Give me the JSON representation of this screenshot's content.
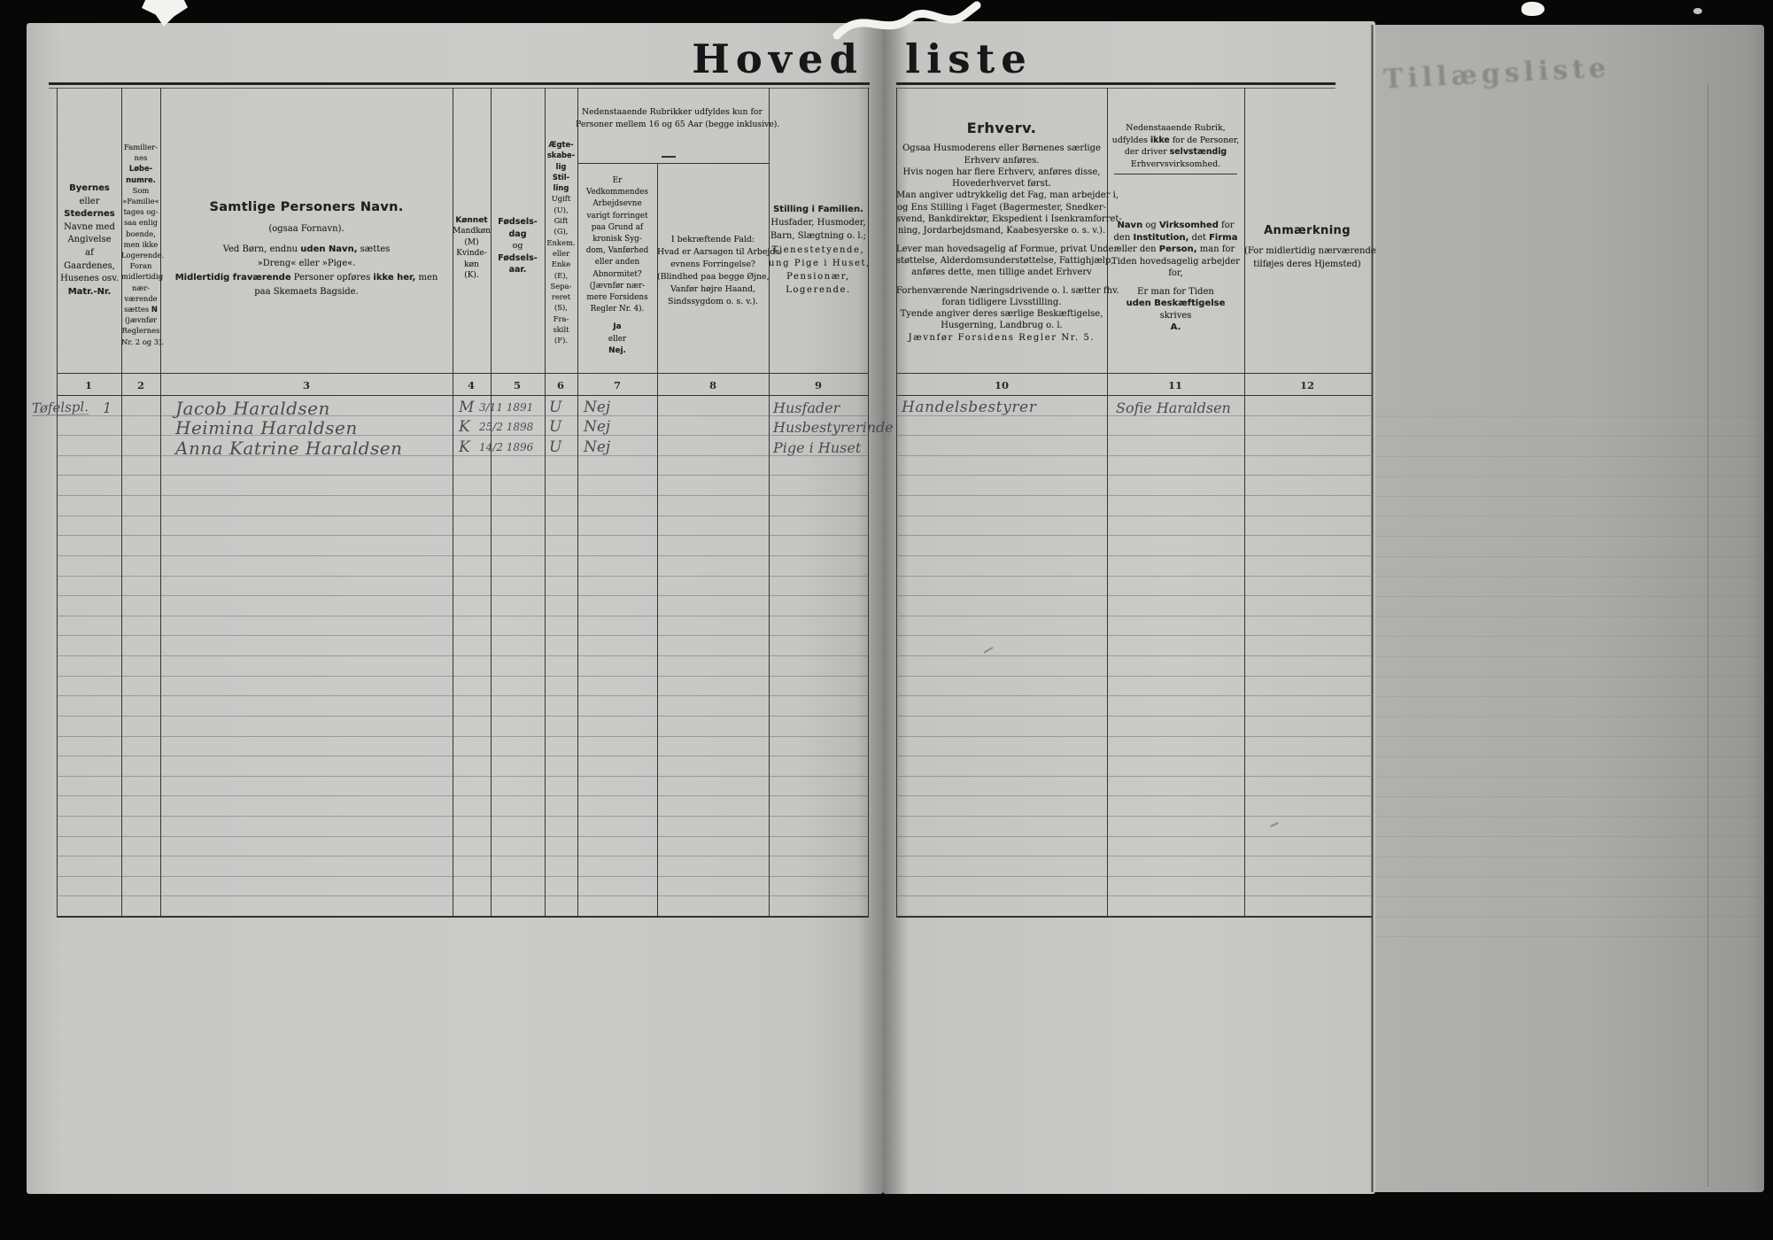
{
  "title": {
    "word1": "Hoved",
    "word2": "liste"
  },
  "bleed": {
    "text": "Tillægsliste"
  },
  "left_table": {
    "numbers": [
      "1",
      "2",
      "3",
      "4",
      "5",
      "6",
      "7",
      "8",
      "9"
    ],
    "col1": {
      "lines": [
        [
          {
            "t": "Byernes",
            "b": 1
          }
        ],
        [
          {
            "t": "eller"
          }
        ],
        [
          {
            "t": "Stedernes",
            "b": 1
          }
        ],
        [
          {
            "t": "Navne med"
          }
        ],
        [
          {
            "t": "Angivelse"
          }
        ],
        [
          {
            "t": "af"
          }
        ],
        [
          {
            "t": "Gaardenes,"
          }
        ],
        [
          {
            "t": "Husenes osv."
          }
        ],
        [
          {
            "t": "Matr.-Nr.",
            "b": 1
          }
        ]
      ]
    },
    "col2": {
      "lines": [
        [
          {
            "t": "Familier-"
          }
        ],
        [
          {
            "t": "nes"
          }
        ],
        [
          {
            "t": "Løbe-",
            "b": 1
          }
        ],
        [
          {
            "t": "numre.",
            "b": 1
          }
        ],
        [
          {
            "t": "Som"
          }
        ],
        [
          {
            "t": "»Familie«"
          }
        ],
        [
          {
            "t": "tages og-"
          }
        ],
        [
          {
            "t": "saa enlig"
          }
        ],
        [
          {
            "t": "boende,"
          }
        ],
        [
          {
            "t": "men ikke"
          }
        ],
        [
          {
            "t": "Logerende."
          }
        ],
        [
          {
            "t": "Foran"
          }
        ],
        [
          {
            "t": "midlertidig"
          }
        ],
        [
          {
            "t": "nær-"
          }
        ],
        [
          {
            "t": "værende"
          }
        ],
        [
          {
            "t": "sættes "
          },
          {
            "t": "N",
            "b": 1
          }
        ],
        [
          {
            "t": "(jævnfør"
          }
        ],
        [
          {
            "t": "Reglernes"
          }
        ],
        [
          {
            "t": "Nr. 2 og 3)."
          }
        ]
      ]
    },
    "col3": {
      "lines": [
        [
          {
            "t": "Samtlige Personers Navn.",
            "b": 1,
            "c": "big"
          }
        ],
        [
          {
            "t": "(ogsaa Fornavn).",
            "lc": "gap"
          }
        ],
        [
          {
            "t": "Ved Børn, endnu ",
            "lc": "gap"
          },
          {
            "t": "uden Navn,",
            "b": 1
          },
          {
            "t": " sættes"
          }
        ],
        [
          {
            "t": "»Dreng« eller »Pige«."
          }
        ],
        [
          {
            "t": "Midlertidig fraværende",
            "b": 1
          },
          {
            "t": " Personer opføres "
          },
          {
            "t": "ikke her,",
            "b": 1
          },
          {
            "t": " men"
          }
        ],
        [
          {
            "t": "paa Skemaets Bagside."
          }
        ]
      ]
    },
    "col4": {
      "lines": [
        [
          {
            "t": "Kønnet",
            "b": 1
          }
        ],
        [
          {
            "t": "Mandkøn"
          }
        ],
        [
          {
            "t": "(M)"
          }
        ],
        [
          {
            "t": "Kvinde-"
          }
        ],
        [
          {
            "t": "køn"
          }
        ],
        [
          {
            "t": "(K)."
          }
        ]
      ]
    },
    "col5": {
      "lines": [
        [
          {
            "t": "Fødsels-",
            "b": 1
          }
        ],
        [
          {
            "t": "dag",
            "b": 1
          }
        ],
        [
          {
            "t": "og"
          }
        ],
        [
          {
            "t": "Fødsels-",
            "b": 1
          }
        ],
        [
          {
            "t": "aar.",
            "b": 1
          }
        ]
      ]
    },
    "col6": {
      "lines": [
        [
          {
            "t": "Ægte-",
            "b": 1
          }
        ],
        [
          {
            "t": "skabe-",
            "b": 1
          }
        ],
        [
          {
            "t": "lig",
            "b": 1
          }
        ],
        [
          {
            "t": "Stil-",
            "b": 1
          }
        ],
        [
          {
            "t": "ling",
            "b": 1
          }
        ],
        [
          {
            "t": "Ugift"
          }
        ],
        [
          {
            "t": "(U),"
          }
        ],
        [
          {
            "t": "Gift"
          }
        ],
        [
          {
            "t": "(G),"
          }
        ],
        [
          {
            "t": "Enkem."
          }
        ],
        [
          {
            "t": "eller"
          }
        ],
        [
          {
            "t": "Enke"
          }
        ],
        [
          {
            "t": "(E),"
          }
        ],
        [
          {
            "t": "Sepa-"
          }
        ],
        [
          {
            "t": "reret"
          }
        ],
        [
          {
            "t": "(S),"
          }
        ],
        [
          {
            "t": "Fra-"
          }
        ],
        [
          {
            "t": "skilt"
          }
        ],
        [
          {
            "t": "(F)."
          }
        ]
      ]
    },
    "span_note": {
      "lines": [
        [
          {
            "t": "Nedenstaaende Rubrikker udfyldes kun for"
          }
        ],
        [
          {
            "t": "Personer mellem 16 og 65 Aar (begge inklusive)."
          }
        ]
      ]
    },
    "col7": {
      "lines": [
        [
          {
            "t": "Er"
          }
        ],
        [
          {
            "t": "Vedkommendes"
          }
        ],
        [
          {
            "t": "Arbejdsevne"
          }
        ],
        [
          {
            "t": "varigt forringet"
          }
        ],
        [
          {
            "t": "paa Grund af"
          }
        ],
        [
          {
            "t": "kronisk Syg-"
          }
        ],
        [
          {
            "t": "dom, Vanførhed"
          }
        ],
        [
          {
            "t": "eller anden"
          }
        ],
        [
          {
            "t": "Abnormitet?"
          }
        ],
        [
          {
            "t": "(Jævnfør nær-"
          }
        ],
        [
          {
            "t": "mere Forsidens"
          }
        ],
        [
          {
            "t": "Regler Nr. 4)."
          }
        ],
        [
          {
            "t": "Ja",
            "b": 1,
            "lc": "gap"
          }
        ],
        [
          {
            "t": "eller"
          }
        ],
        [
          {
            "t": "Nej.",
            "b": 1
          }
        ]
      ]
    },
    "col8": {
      "lines": [
        [
          {
            "t": "I bekræftende Fald:"
          }
        ],
        [
          {
            "t": "Hvad er Aarsagen til Arbejds-"
          }
        ],
        [
          {
            "t": "evnens Forringelse?"
          }
        ],
        [
          {
            "t": "(Blindhed paa begge Øjne,"
          }
        ],
        [
          {
            "t": "Vanfør højre Haand,"
          }
        ],
        [
          {
            "t": "Sindssygdom o. s. v.)."
          }
        ]
      ]
    },
    "col9": {
      "lines": [
        [
          {
            "t": "Stilling i Familien.",
            "b": 1
          }
        ],
        [
          {
            "t": "Husfader, Husmoder,"
          }
        ],
        [
          {
            "t": "Barn, Slægtning o. l.;"
          }
        ],
        [
          {
            "t": "Tjenestetyende,",
            "c": "sp"
          }
        ],
        [
          {
            "t": "ung Pige i Huset,",
            "c": "sp"
          }
        ],
        [
          {
            "t": "Pensionær,",
            "c": "sp"
          }
        ],
        [
          {
            "t": "Logerende.",
            "c": "sp"
          }
        ]
      ]
    }
  },
  "right_table": {
    "numbers": [
      "10",
      "11",
      "12"
    ],
    "col10": {
      "lines": [
        [
          {
            "t": "Erhverv.",
            "b": 1,
            "c": "big"
          }
        ],
        [
          {
            "t": "Ogsaa Husmoderens eller Børnenes særlige",
            "lc": "gap"
          }
        ],
        [
          {
            "t": "Erhverv anføres."
          }
        ],
        [
          {
            "t": "Hvis nogen har flere Erhverv, anføres disse,"
          }
        ],
        [
          {
            "t": "Hovederhvervet først."
          }
        ],
        [
          {
            "t": "Man angiver udtrykkelig det Fag, man arbejder i,"
          }
        ],
        [
          {
            "t": "og Ens Stilling i Faget (Bagermester, Snedker-"
          }
        ],
        [
          {
            "t": "svend, Bankdirektør, Ekspedient i Isenkramforret-"
          }
        ],
        [
          {
            "t": "ning, Jordarbejdsmand, Kaabesyerske o. s. v.)."
          }
        ],
        [
          {
            "t": "Lever man hovedsagelig af Formue, privat Under-",
            "lc": "gap"
          }
        ],
        [
          {
            "t": "støttelse, Alderdomsunderstøttelse, Fattighjælp,"
          }
        ],
        [
          {
            "t": "anføres dette, men tillige andet Erhverv"
          }
        ],
        [
          {
            "t": "Forhenværende Næringsdrivende o. l. sætter fhv.",
            "lc": "gap"
          }
        ],
        [
          {
            "t": "foran tidligere Livsstilling."
          }
        ],
        [
          {
            "t": "Tyende angiver deres særlige Beskæftigelse,"
          }
        ],
        [
          {
            "t": "Husgerning, Landbrug o. l."
          }
        ],
        [
          {
            "t": "Jævnfør Forsidens Regler Nr. 5.",
            "c": "sp"
          }
        ]
      ]
    },
    "col11": {
      "note_lines": [
        [
          {
            "t": "Nedenstaaende Rubrik,"
          }
        ],
        [
          {
            "t": "udfyldes "
          },
          {
            "t": "ikke",
            "b": 1
          },
          {
            "t": " for de Personer,"
          }
        ],
        [
          {
            "t": "der driver "
          },
          {
            "t": "selvstændig",
            "b": 1
          }
        ],
        [
          {
            "t": "Erhvervsvirksomhed."
          }
        ]
      ],
      "main_lines": [
        [
          {
            "t": "Navn",
            "b": 1
          },
          {
            "t": " og "
          },
          {
            "t": "Virksomhed",
            "b": 1
          },
          {
            "t": " for"
          }
        ],
        [
          {
            "t": "den "
          },
          {
            "t": "Institution,",
            "b": 1
          },
          {
            "t": " det "
          },
          {
            "t": "Firma",
            "b": 1
          }
        ],
        [
          {
            "t": "eller den "
          },
          {
            "t": "Person,",
            "b": 1
          },
          {
            "t": " man for"
          }
        ],
        [
          {
            "t": "Tiden hovedsagelig arbejder"
          }
        ],
        [
          {
            "t": "for,"
          }
        ],
        [
          {
            "t": "Er man for Tiden",
            "lc": "gap"
          }
        ],
        [
          {
            "t": "uden Beskæftigelse",
            "b": 1
          }
        ],
        [
          {
            "t": "skrives"
          }
        ],
        [
          {
            "t": "A.",
            "b": 1
          }
        ]
      ]
    },
    "col12": {
      "lines": [
        [
          {
            "t": "Anmærkning",
            "b": 1,
            "c": "big2"
          }
        ],
        [
          {
            "t": "(For midlertidig nærværende",
            "lc": "gap"
          }
        ],
        [
          {
            "t": "tilføjes deres Hjemsted)"
          }
        ]
      ]
    }
  },
  "row_count": 26,
  "rows": [
    {
      "place": "Tøfelspl.",
      "family_no": "1",
      "name": "Jacob Haraldsen",
      "sex": "M",
      "birth": "3/11 1891",
      "marital": "U",
      "ability": "Nej",
      "position": "Husfader",
      "occupation": "Handelsbestyrer",
      "employer": "Sofie Haraldsen"
    },
    {
      "name": "Heimina Haraldsen",
      "sex": "K",
      "birth": "25/2 1898",
      "marital": "U",
      "ability": "Nej",
      "position": "Husbestyrerinde"
    },
    {
      "name": "Anna Katrine Haraldsen",
      "sex": "K",
      "birth": "14/2 1896",
      "marital": "U",
      "ability": "Nej",
      "position": "Pige i Huset"
    }
  ]
}
